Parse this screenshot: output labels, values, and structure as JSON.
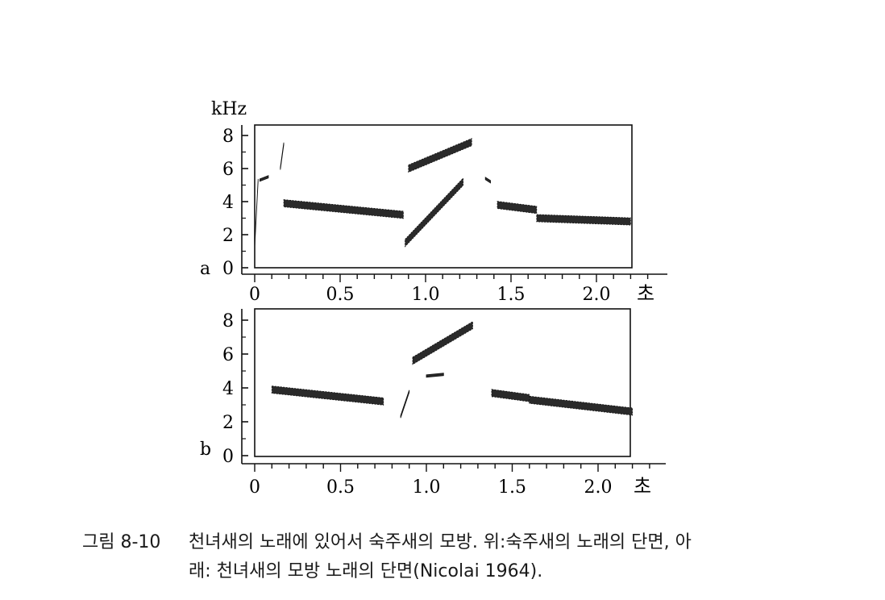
{
  "figure": {
    "top_panel_letter": "a",
    "bottom_panel_letter": "b",
    "y_unit": "kHz",
    "x_unit": "초",
    "y_ticks": [
      "0",
      "2",
      "4",
      "6",
      "8"
    ],
    "x_ticks": [
      "0",
      "0.5",
      "1.0",
      "1.5",
      "2.0"
    ]
  },
  "chart_data": [
    {
      "type": "scatter",
      "panel": "a",
      "description_source": "sonogram",
      "ylabel": "kHz",
      "xlabel": "초",
      "xlim": [
        0,
        2.2
      ],
      "ylim": [
        0,
        8
      ],
      "segments": [
        {
          "t": [
            0.0,
            0.02
          ],
          "f": [
            1.3,
            5.3
          ]
        },
        {
          "t": [
            0.03,
            0.08
          ],
          "f": [
            5.3,
            5.5
          ]
        },
        {
          "t": [
            0.15,
            0.17
          ],
          "f": [
            6.0,
            7.5
          ]
        },
        {
          "t": [
            0.17,
            0.87
          ],
          "f": [
            3.9,
            3.2
          ]
        },
        {
          "t": [
            0.88,
            1.22
          ],
          "f": [
            1.5,
            5.2
          ]
        },
        {
          "t": [
            0.9,
            1.27
          ],
          "f": [
            6.0,
            7.6
          ]
        },
        {
          "t": [
            1.35,
            1.38
          ],
          "f": [
            5.4,
            5.2
          ]
        },
        {
          "t": [
            1.42,
            1.65
          ],
          "f": [
            3.8,
            3.5
          ]
        },
        {
          "t": [
            1.65,
            2.2
          ],
          "f": [
            3.0,
            2.8
          ]
        }
      ]
    },
    {
      "type": "scatter",
      "panel": "b",
      "description_source": "sonogram",
      "ylabel": "kHz",
      "xlabel": "초",
      "xlim": [
        0,
        2.2
      ],
      "ylim": [
        0,
        8
      ],
      "segments": [
        {
          "t": [
            0.1,
            0.75
          ],
          "f": [
            3.9,
            3.2
          ]
        },
        {
          "t": [
            0.85,
            0.9
          ],
          "f": [
            2.3,
            3.8
          ]
        },
        {
          "t": [
            0.92,
            1.27
          ],
          "f": [
            5.6,
            7.7
          ]
        },
        {
          "t": [
            1.0,
            1.1
          ],
          "f": [
            4.7,
            4.8
          ]
        },
        {
          "t": [
            1.38,
            1.6
          ],
          "f": [
            3.7,
            3.4
          ]
        },
        {
          "t": [
            1.6,
            2.2
          ],
          "f": [
            3.3,
            2.6
          ]
        }
      ]
    }
  ],
  "caption": {
    "label": "그림 8-10",
    "line1": "천녀새의 노래에 있어서 숙주새의 모방. 위:숙주새의 노래의 단면, 아",
    "line2": "래: 천녀새의 모방 노래의 단면(Nicolai 1964)."
  }
}
